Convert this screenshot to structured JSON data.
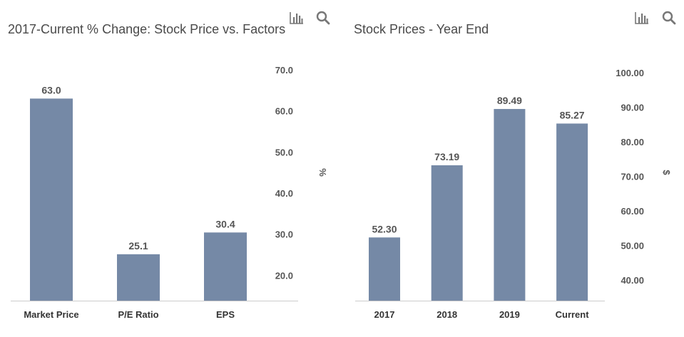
{
  "toolbar": {
    "chart_icon": "bar-chart-icon",
    "search_icon": "search-icon"
  },
  "colors": {
    "bar": "#7589a6",
    "axis": "#cccccc"
  },
  "chart_data": [
    {
      "type": "bar",
      "title": "2017-Current % Change: Stock Price vs. Factors",
      "categories": [
        "Market Price",
        "P/E Ratio",
        "EPS"
      ],
      "values": [
        63.0,
        25.1,
        30.4
      ],
      "value_labels": [
        "63.0",
        "25.1",
        "30.4"
      ],
      "ylabel": "%",
      "ylim": [
        13.8,
        70.0
      ],
      "yticks": [
        20.0,
        30.0,
        40.0,
        50.0,
        60.0,
        70.0
      ],
      "ytick_labels": [
        "20.0",
        "30.0",
        "40.0",
        "50.0",
        "60.0",
        "70.0"
      ],
      "y_axis_side": "right",
      "grid": false,
      "legend": "none"
    },
    {
      "type": "bar",
      "title": "Stock Prices - Year End",
      "categories": [
        "2017",
        "2018",
        "2019",
        "Current"
      ],
      "values": [
        52.3,
        73.19,
        89.49,
        85.27
      ],
      "value_labels": [
        "52.30",
        "73.19",
        "89.49",
        "85.27"
      ],
      "ylabel": "$",
      "ylim": [
        34.0,
        100.0
      ],
      "yticks": [
        40.0,
        50.0,
        60.0,
        70.0,
        80.0,
        90.0,
        100.0
      ],
      "ytick_labels": [
        "40.00",
        "50.00",
        "60.00",
        "70.00",
        "80.00",
        "90.00",
        "100.00"
      ],
      "y_axis_side": "right",
      "grid": false,
      "legend": "none"
    }
  ]
}
